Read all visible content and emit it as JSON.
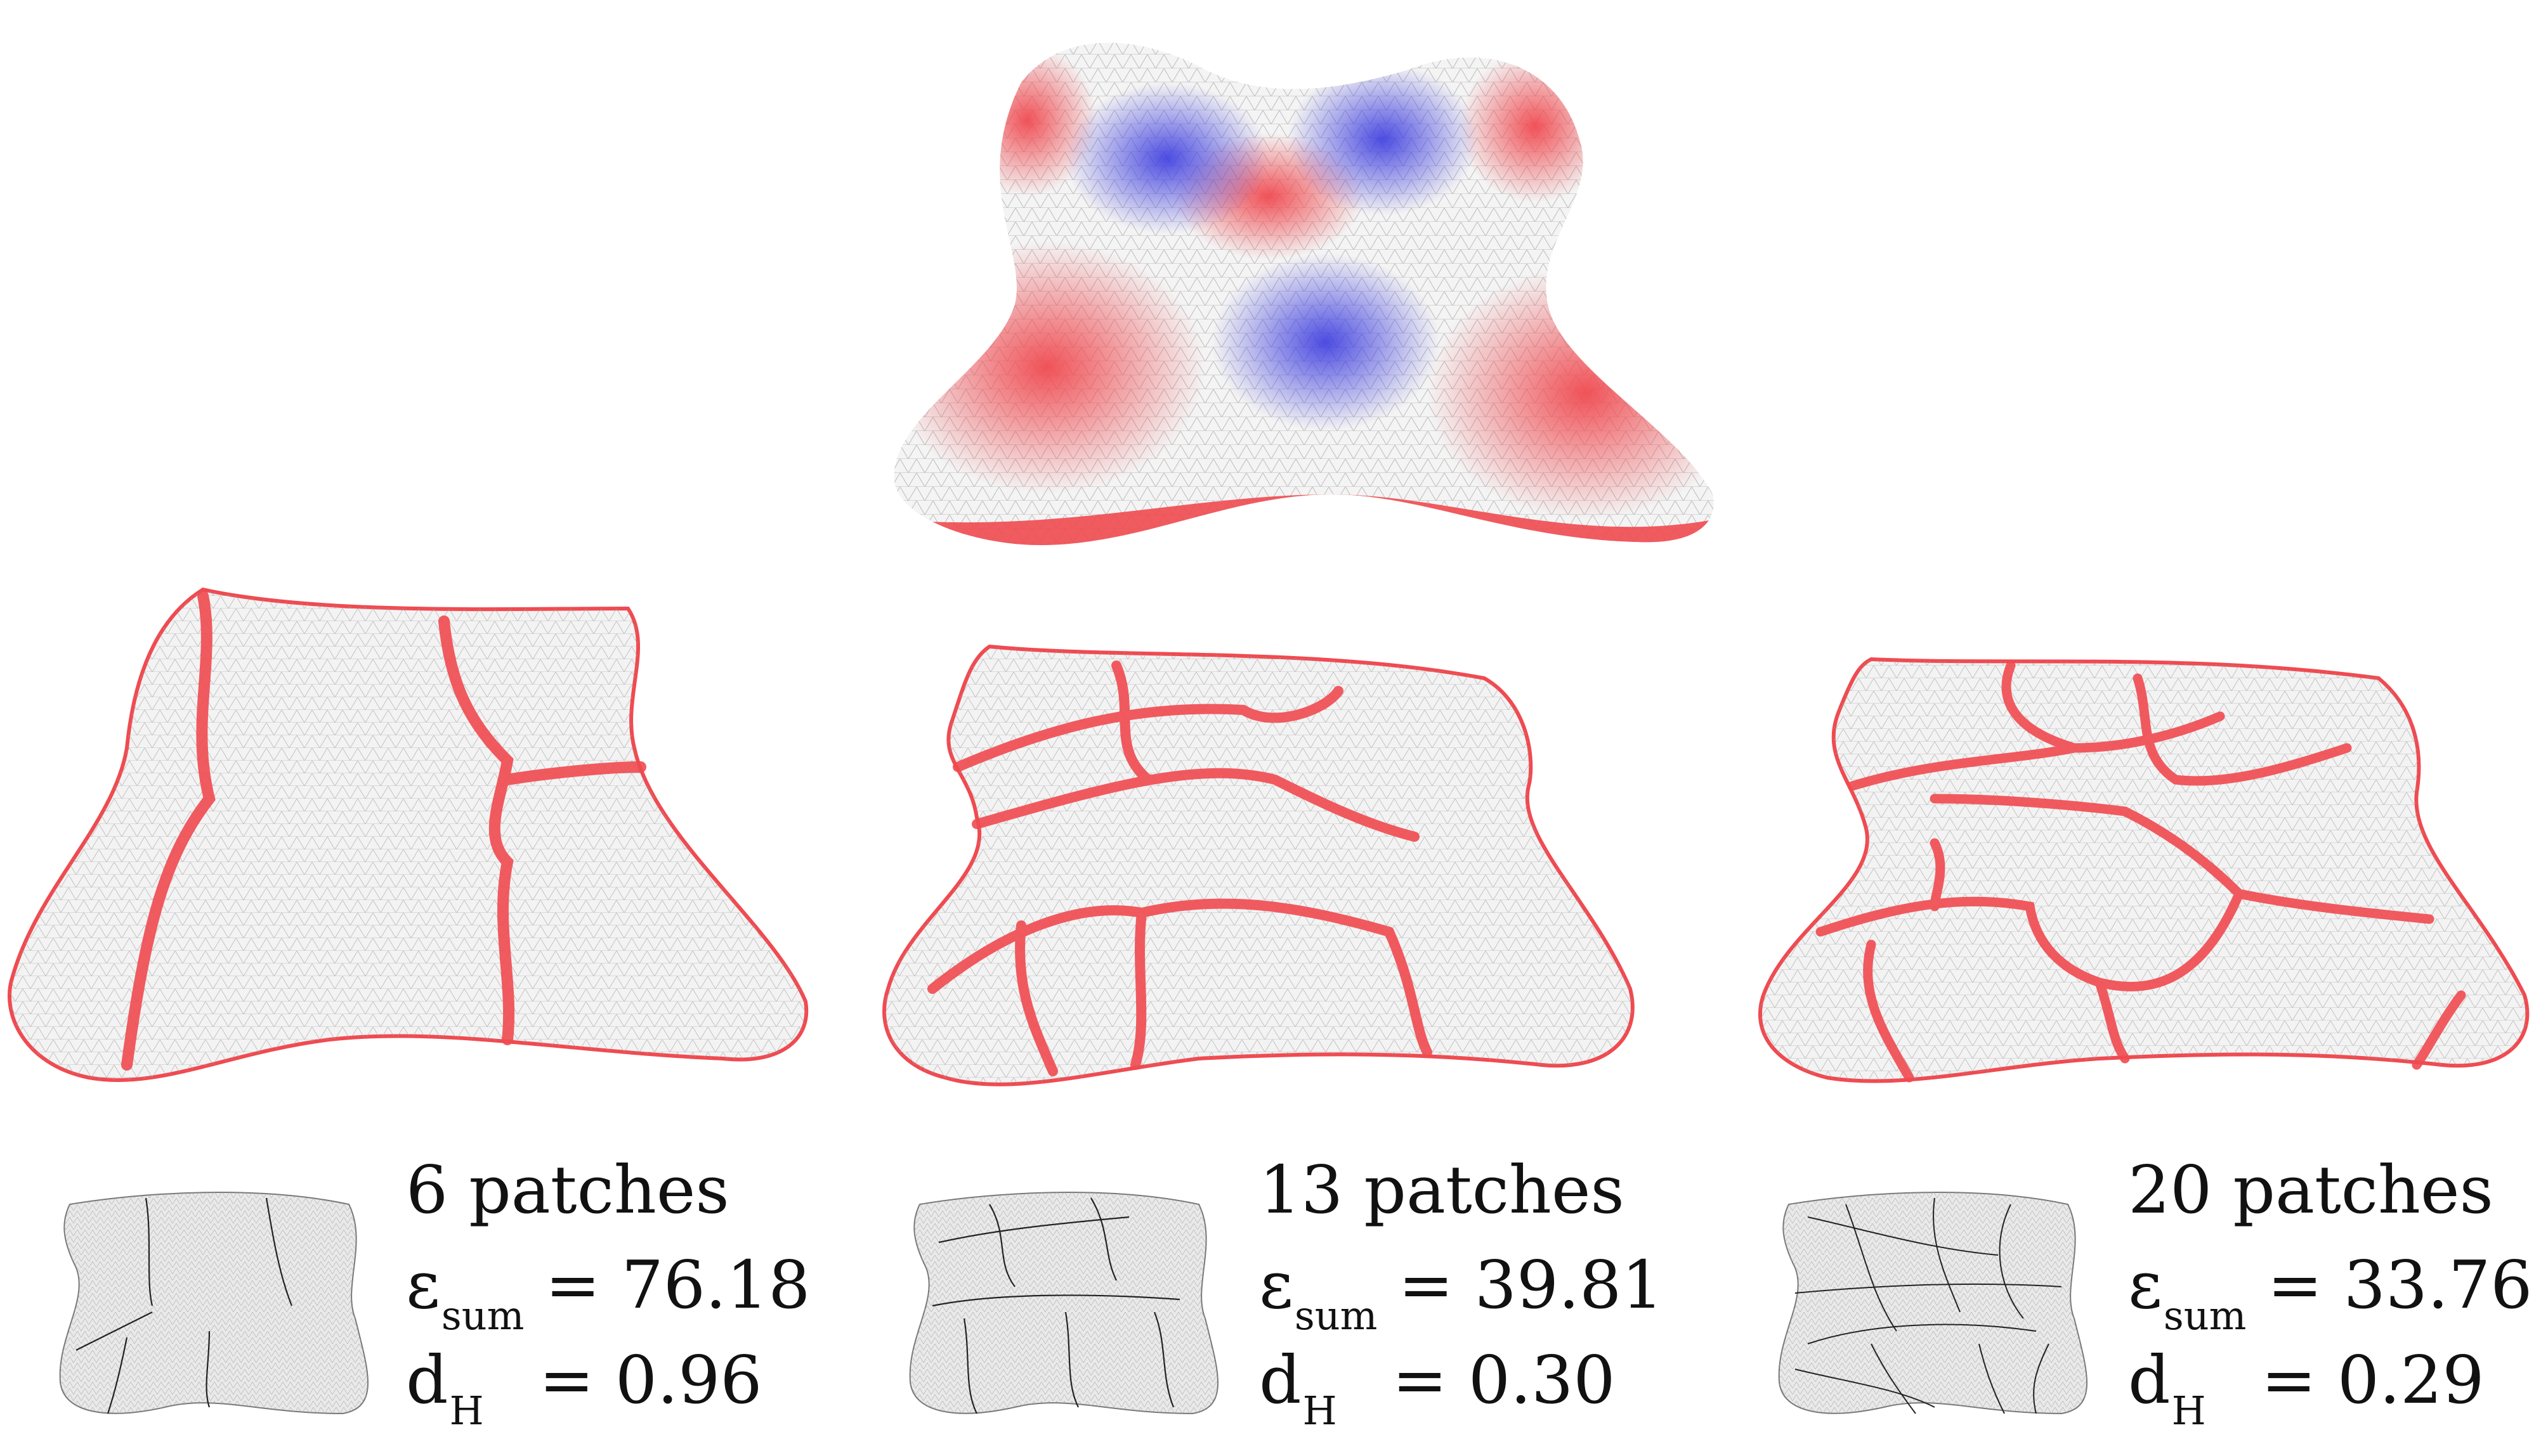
{
  "figure": {
    "panels": [
      {
        "name": "six-patches",
        "title": "6 patches",
        "eps_symbol": "ε",
        "eps_subscript": "sum",
        "eps_value": "= 76.18",
        "dh_symbol": "d",
        "dh_subscript": "H",
        "dh_value": "= 0.96"
      },
      {
        "name": "thirteen-patches",
        "title": "13 patches",
        "eps_symbol": "ε",
        "eps_subscript": "sum",
        "eps_value": "= 39.81",
        "dh_symbol": "d",
        "dh_subscript": "H",
        "dh_value": "= 0.30"
      },
      {
        "name": "twenty-patches",
        "title": "20 patches",
        "eps_symbol": "ε",
        "eps_subscript": "sum",
        "eps_value": "= 33.76",
        "dh_symbol": "d",
        "dh_subscript": "H",
        "dh_value": "= 0.29"
      }
    ],
    "colors": {
      "seam": "#f04a50",
      "positive": "#f04a50",
      "negative": "#3a3ae0",
      "surface": "#f2f2f2",
      "mesh": "#8a8a8a",
      "text": "#111111"
    }
  }
}
